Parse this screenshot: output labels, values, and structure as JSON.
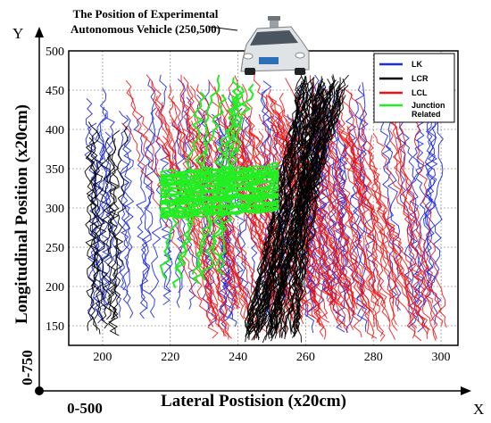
{
  "header": {
    "title_line1": "The Position of Experimental",
    "title_line2": "Autonomous Vehicle (250,500)"
  },
  "axes": {
    "y_axis_letter": "Y",
    "x_axis_letter": "X",
    "origin_y_range": "0-750",
    "origin_x_range": "0-500"
  },
  "chart_data": {
    "type": "line",
    "xlabel": "Lateral Postision (x20cm)",
    "ylabel": "Longitudinal Position (x20cm)",
    "xlim": [
      190,
      305
    ],
    "ylim": [
      125,
      500
    ],
    "xticks": [
      200,
      220,
      240,
      260,
      280,
      300
    ],
    "yticks": [
      150,
      200,
      250,
      300,
      350,
      400,
      450,
      500
    ],
    "grid": true,
    "legend_position": "top-right",
    "series": [
      {
        "name": "LK",
        "color": "#1f2de0"
      },
      {
        "name": "LCR",
        "color": "#000000"
      },
      {
        "name": "LCL",
        "color": "#ee1111"
      },
      {
        "name": "Junction\nRelated",
        "color": "#22ee22"
      }
    ]
  },
  "vehicle": {
    "icon": "car-icon",
    "body_color": "#dfe3e6",
    "window_color": "#4a5560"
  }
}
